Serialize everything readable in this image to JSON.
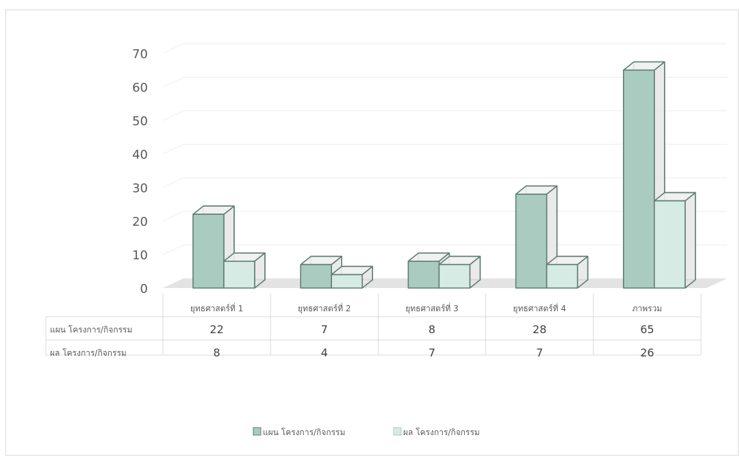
{
  "chart_data": {
    "type": "bar",
    "categories": [
      "ยุทธศาสตร์ที่ 1",
      "ยุทธศาสตร์ที่ 2",
      "ยุทธศาสตร์ที่ 3",
      "ยุทธศาสตร์ที่ 4",
      "ภาพรวม"
    ],
    "series": [
      {
        "name": "แผน โครงการ/กิจกรรม",
        "values": [
          22,
          7,
          8,
          28,
          65
        ],
        "color": "#a9cbc0"
      },
      {
        "name": "ผล โครงการ/กิจกรรม",
        "values": [
          8,
          4,
          7,
          7,
          26
        ],
        "color": "#d6ebe4"
      }
    ],
    "yticks": [
      0,
      10,
      20,
      30,
      40,
      50,
      60,
      70
    ],
    "ylim": [
      0,
      70
    ],
    "grid": true,
    "style": "3d-clustered-column",
    "data_table": true,
    "legend": "bottom",
    "edge_color": "#5f7d72"
  }
}
